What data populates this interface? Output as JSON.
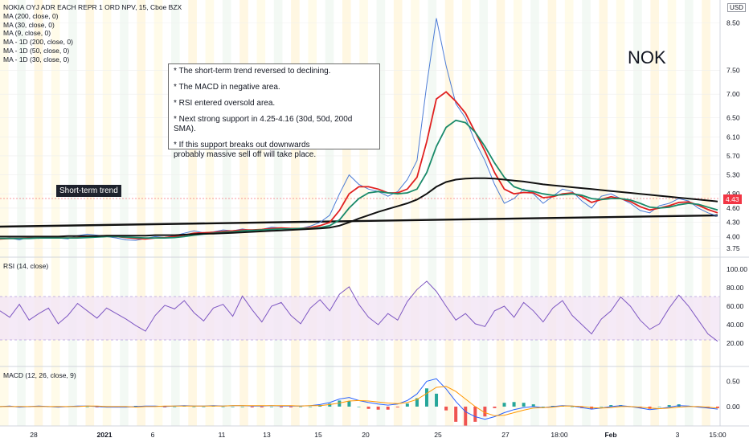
{
  "header": {
    "symbol_title": "NOKIA OYJ ADR EACH REPR 1 ORD NPV, 15, Cboe BZX",
    "currency_badge": "USD",
    "indicators": [
      "MA (200, close, 0)",
      "MA (30, close, 0)",
      "MA (9, close, 0)",
      "MA - 1D (200, close, 0)",
      "MA - 1D (50, close, 0)",
      "MA - 1D (30, close, 0)"
    ]
  },
  "annotations": {
    "ticker_label": "NOK",
    "trend_label": "Short-term trend",
    "notes": [
      "* The short-term trend reversed to declining.",
      "* The MACD in negative area.",
      "* RSI entered oversold area.",
      "* Next strong support in 4.25-4.16 (30d, 50d, 200d SMA).",
      "* If this support breaks out downwards\n   probably massive sell off will take place."
    ],
    "last_price_label": "4.43"
  },
  "colors": {
    "price": "#4c7cd6",
    "ma_fast": "#e02020",
    "ma_mid": "#1a8a6a",
    "ma_slow": "#111111",
    "rsi": "#7e57c2",
    "macd": "#2962ff",
    "signal": "#ff9800",
    "band": "#f3e5f5",
    "up": "#26a69a",
    "down": "#ef5350"
  },
  "chart_data": [
    {
      "type": "line",
      "title": "",
      "x_tick_labels": [
        "28",
        "2021",
        "6",
        "11",
        "13",
        "15",
        "20",
        "25",
        "27",
        "18:00",
        "Feb",
        "3",
        "15:00"
      ],
      "y_tick_labels": [
        "3.75",
        "4.00",
        "4.30",
        "4.60",
        "4.90",
        "5.30",
        "5.70",
        "6.10",
        "6.50",
        "7.00",
        "7.50",
        "8.50"
      ],
      "series": [
        {
          "values": [
            3.95,
            3.97,
            3.93,
            3.99,
            3.96,
            4.0,
            3.97,
            3.95,
            4.02,
            4.05,
            4.03,
            4.0,
            3.97,
            3.93,
            3.92,
            3.96,
            4.0,
            3.98,
            4.02,
            4.07,
            4.12,
            4.08,
            4.1,
            4.14,
            4.12,
            4.16,
            4.13,
            4.15,
            4.2,
            4.18,
            4.16,
            4.17,
            4.22,
            4.3,
            4.45,
            4.9,
            5.3,
            5.1,
            5.0,
            4.95,
            4.85,
            4.95,
            5.2,
            5.6,
            7.2,
            8.6,
            7.6,
            6.8,
            6.5,
            6.0,
            5.6,
            5.1,
            4.7,
            4.8,
            5.0,
            4.9,
            4.7,
            4.85,
            5.0,
            4.95,
            4.75,
            4.6,
            4.85,
            4.9,
            4.8,
            4.7,
            4.55,
            4.5,
            4.65,
            4.7,
            4.8,
            4.75,
            4.6,
            4.5,
            4.43
          ]
        },
        {
          "values": [
            3.95,
            3.96,
            3.96,
            3.97,
            3.97,
            3.98,
            3.98,
            3.97,
            3.98,
            4.0,
            4.01,
            4.01,
            4.0,
            3.98,
            3.96,
            3.95,
            3.97,
            3.98,
            4.0,
            4.03,
            4.07,
            4.08,
            4.09,
            4.11,
            4.12,
            4.14,
            4.14,
            4.15,
            4.17,
            4.18,
            4.17,
            4.17,
            4.19,
            4.23,
            4.3,
            4.55,
            4.9,
            5.05,
            5.05,
            5.0,
            4.92,
            4.92,
            5.0,
            5.25,
            6.0,
            6.9,
            7.05,
            6.85,
            6.6,
            6.2,
            5.8,
            5.35,
            5.0,
            4.9,
            4.93,
            4.92,
            4.82,
            4.84,
            4.9,
            4.92,
            4.84,
            4.72,
            4.78,
            4.84,
            4.8,
            4.74,
            4.63,
            4.56,
            4.6,
            4.65,
            4.72,
            4.73,
            4.66,
            4.57,
            4.5
          ]
        },
        {
          "values": [
            3.96,
            3.96,
            3.96,
            3.96,
            3.97,
            3.97,
            3.97,
            3.97,
            3.97,
            3.98,
            3.99,
            4.0,
            4.0,
            3.99,
            3.98,
            3.97,
            3.97,
            3.97,
            3.98,
            4.0,
            4.03,
            4.05,
            4.07,
            4.09,
            4.1,
            4.12,
            4.13,
            4.14,
            4.15,
            4.16,
            4.16,
            4.17,
            4.17,
            4.19,
            4.23,
            4.35,
            4.6,
            4.8,
            4.92,
            4.95,
            4.92,
            4.9,
            4.92,
            5.0,
            5.35,
            5.9,
            6.3,
            6.45,
            6.4,
            6.2,
            5.9,
            5.55,
            5.25,
            5.05,
            4.98,
            4.95,
            4.9,
            4.87,
            4.88,
            4.9,
            4.87,
            4.8,
            4.78,
            4.8,
            4.8,
            4.77,
            4.7,
            4.62,
            4.6,
            4.62,
            4.67,
            4.7,
            4.68,
            4.62,
            4.56
          ]
        },
        {
          "values": [
            4.0,
            4.0,
            4.0,
            4.0,
            4.0,
            4.0,
            4.0,
            4.01,
            4.01,
            4.01,
            4.01,
            4.02,
            4.02,
            4.02,
            4.02,
            4.02,
            4.03,
            4.03,
            4.03,
            4.04,
            4.05,
            4.06,
            4.06,
            4.07,
            4.08,
            4.09,
            4.1,
            4.11,
            4.12,
            4.13,
            4.14,
            4.15,
            4.16,
            4.17,
            4.19,
            4.23,
            4.3,
            4.38,
            4.45,
            4.52,
            4.58,
            4.64,
            4.7,
            4.78,
            4.9,
            5.05,
            5.15,
            5.2,
            5.22,
            5.23,
            5.23,
            5.22,
            5.2,
            5.18,
            5.16,
            5.13,
            5.1,
            5.08,
            5.06,
            5.04,
            5.02,
            5.0,
            4.98,
            4.96,
            4.94,
            4.92,
            4.9,
            4.88,
            4.86,
            4.84,
            4.82,
            4.8,
            4.78,
            4.76,
            4.74
          ]
        }
      ]
    },
    {
      "type": "line",
      "title": "RSI (14, close)",
      "y_tick_labels": [
        "100.00",
        "80.00",
        "60.00",
        "40.00",
        "20.00"
      ],
      "band": [
        30,
        70
      ],
      "series": [
        {
          "values": [
            55,
            48,
            62,
            45,
            52,
            58,
            41,
            50,
            63,
            55,
            47,
            58,
            52,
            46,
            39,
            33,
            50,
            61,
            57,
            66,
            53,
            44,
            58,
            62,
            49,
            71,
            56,
            43,
            60,
            64,
            50,
            41,
            58,
            67,
            55,
            73,
            81,
            62,
            48,
            40,
            52,
            45,
            65,
            78,
            87,
            76,
            60,
            45,
            52,
            41,
            38,
            55,
            60,
            48,
            64,
            55,
            43,
            58,
            66,
            50,
            40,
            30,
            46,
            55,
            70,
            60,
            45,
            35,
            41,
            58,
            72,
            60,
            45,
            30,
            22
          ]
        }
      ]
    },
    {
      "type": "bar",
      "title": "MACD (12, 26, close, 9)",
      "y_tick_labels": [
        "0.50",
        "0.00"
      ],
      "series": [
        {
          "values": [
            0,
            0.01,
            -0.01,
            0,
            0.01,
            0,
            -0.01,
            0,
            0.01,
            0.01,
            0,
            -0.01,
            -0.01,
            -0.01,
            0,
            0.01,
            0.01,
            0,
            0.01,
            0.02,
            0.01,
            0.01,
            0.02,
            0.01,
            0.02,
            0.02,
            0.01,
            0.01,
            0.02,
            0.01,
            0.01,
            0.01,
            0.02,
            0.04,
            0.08,
            0.15,
            0.18,
            0.12,
            0.08,
            0.05,
            0.03,
            0.05,
            0.12,
            0.25,
            0.5,
            0.55,
            0.35,
            0.1,
            -0.1,
            -0.2,
            -0.25,
            -0.2,
            -0.12,
            -0.06,
            -0.02,
            0,
            -0.02,
            0,
            0.02,
            0.01,
            -0.02,
            -0.05,
            -0.03,
            0,
            0.02,
            0,
            -0.03,
            -0.06,
            -0.04,
            -0.01,
            0.02,
            0.01,
            -0.01,
            -0.03,
            -0.05
          ]
        },
        {
          "values": [
            0,
            0,
            0,
            0,
            0,
            0,
            0,
            0,
            0,
            0.01,
            0.01,
            0,
            0,
            0,
            -0.01,
            0,
            0,
            0.01,
            0.01,
            0.01,
            0.01,
            0.01,
            0.01,
            0.01,
            0.02,
            0.02,
            0.02,
            0.02,
            0.02,
            0.02,
            0.02,
            0.01,
            0.02,
            0.02,
            0.04,
            0.07,
            0.11,
            0.12,
            0.11,
            0.09,
            0.07,
            0.06,
            0.08,
            0.14,
            0.26,
            0.38,
            0.4,
            0.3,
            0.15,
            0.0,
            -0.12,
            -0.18,
            -0.17,
            -0.12,
            -0.07,
            -0.03,
            -0.02,
            -0.01,
            0.01,
            0.01,
            0,
            -0.02,
            -0.03,
            -0.02,
            0,
            0,
            -0.01,
            -0.03,
            -0.04,
            -0.03,
            -0.01,
            0,
            0,
            -0.01,
            -0.03
          ]
        }
      ]
    }
  ]
}
